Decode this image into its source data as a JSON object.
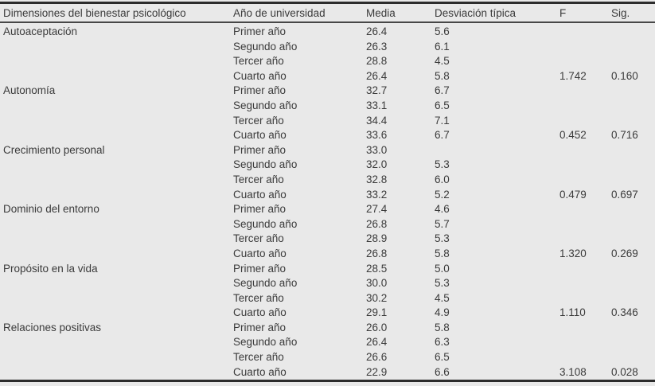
{
  "colors": {
    "background": "#e9e9e9",
    "text": "#3b3b3b",
    "rule": "#2c2c2c"
  },
  "chart_data": {
    "type": "table",
    "columns": [
      "Dimensiones del bienestar psicológico",
      "Año de universidad",
      "Media",
      "Desviación típica",
      "F",
      "Sig."
    ],
    "groups": [
      {
        "dimension": "Autoaceptación",
        "rows": [
          {
            "year": "Primer año",
            "media": "26.4",
            "sd": "5.6",
            "f": "",
            "sig": ""
          },
          {
            "year": "Segundo año",
            "media": "26.3",
            "sd": "6.1",
            "f": "",
            "sig": ""
          },
          {
            "year": "Tercer año",
            "media": "28.8",
            "sd": "4.5",
            "f": "",
            "sig": ""
          },
          {
            "year": "Cuarto año",
            "media": "26.4",
            "sd": "5.8",
            "f": "1.742",
            "sig": "0.160"
          }
        ]
      },
      {
        "dimension": "Autonomía",
        "rows": [
          {
            "year": "Primer año",
            "media": "32.7",
            "sd": "6.7",
            "f": "",
            "sig": ""
          },
          {
            "year": "Segundo año",
            "media": "33.1",
            "sd": "6.5",
            "f": "",
            "sig": ""
          },
          {
            "year": "Tercer año",
            "media": "34.4",
            "sd": "7.1",
            "f": "",
            "sig": ""
          },
          {
            "year": "Cuarto año",
            "media": "33.6",
            "sd": "6.7",
            "f": "0.452",
            "sig": "0.716"
          }
        ]
      },
      {
        "dimension": "Crecimiento personal",
        "rows": [
          {
            "year": "Primer año",
            "media": "33.0",
            "sd": "",
            "f": "",
            "sig": ""
          },
          {
            "year": "Segundo año",
            "media": "32.0",
            "sd": "5.3",
            "f": "",
            "sig": ""
          },
          {
            "year": "Tercer año",
            "media": "32.8",
            "sd": "6.0",
            "f": "",
            "sig": ""
          },
          {
            "year": "Cuarto año",
            "media": "33.2",
            "sd": "5.2",
            "f": "0.479",
            "sig": "0.697"
          }
        ]
      },
      {
        "dimension": "Dominio del entorno",
        "rows": [
          {
            "year": "Primer año",
            "media": "27.4",
            "sd": "4.6",
            "f": "",
            "sig": ""
          },
          {
            "year": "Segundo año",
            "media": "26.8",
            "sd": "5.7",
            "f": "",
            "sig": ""
          },
          {
            "year": "Tercer año",
            "media": "28.9",
            "sd": "5.3",
            "f": "",
            "sig": ""
          },
          {
            "year": "Cuarto año",
            "media": "26.8",
            "sd": "5.8",
            "f": "1.320",
            "sig": "0.269"
          }
        ]
      },
      {
        "dimension": "Propósito en la vida",
        "rows": [
          {
            "year": "Primer año",
            "media": "28.5",
            "sd": "5.0",
            "f": "",
            "sig": ""
          },
          {
            "year": "Segundo año",
            "media": "30.0",
            "sd": "5.3",
            "f": "",
            "sig": ""
          },
          {
            "year": "Tercer año",
            "media": "30.2",
            "sd": "4.5",
            "f": "",
            "sig": ""
          },
          {
            "year": "Cuarto año",
            "media": "29.1",
            "sd": "4.9",
            "f": "1.110",
            "sig": "0.346"
          }
        ]
      },
      {
        "dimension": "Relaciones positivas",
        "rows": [
          {
            "year": "Primer año",
            "media": "26.0",
            "sd": "5.8",
            "f": "",
            "sig": ""
          },
          {
            "year": "Segundo año",
            "media": "26.4",
            "sd": "6.3",
            "f": "",
            "sig": ""
          },
          {
            "year": "Tercer año",
            "media": "26.6",
            "sd": "6.5",
            "f": "",
            "sig": ""
          },
          {
            "year": "Cuarto año",
            "media": "22.9",
            "sd": "6.6",
            "f": "3.108",
            "sig": "0.028"
          }
        ]
      }
    ]
  }
}
